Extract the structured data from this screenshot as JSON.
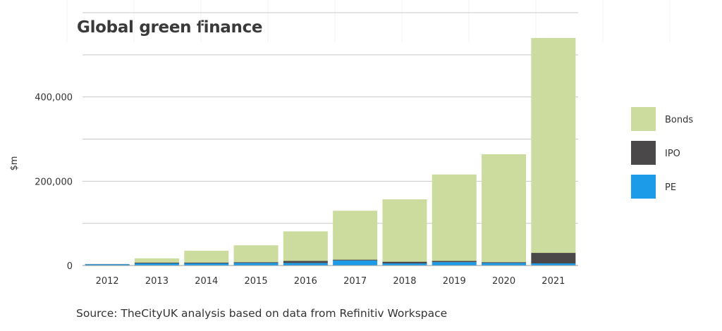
{
  "chart_data": {
    "type": "bar",
    "stacked": true,
    "title": "Global green finance",
    "ylabel": "$m",
    "xlabel": "",
    "source": "Source: TheCityUK analysis based on data from Refinitiv Workspace",
    "categories": [
      "2012",
      "2013",
      "2014",
      "2015",
      "2016",
      "2017",
      "2018",
      "2019",
      "2020",
      "2021"
    ],
    "series": [
      {
        "name": "PE",
        "color": "#1b9be8",
        "values": [
          3000,
          5000,
          5000,
          6000,
          6000,
          12000,
          5000,
          8000,
          6000,
          5000
        ]
      },
      {
        "name": "IPO",
        "color": "#4a4848",
        "values": [
          500,
          2000,
          2000,
          2000,
          5000,
          2000,
          4000,
          3000,
          2000,
          25000
        ]
      },
      {
        "name": "Bonds",
        "color": "#cbdc9e",
        "values": [
          0,
          10000,
          28000,
          40000,
          70000,
          116000,
          148000,
          205000,
          256000,
          510000
        ]
      }
    ],
    "ylim": [
      0,
      600000
    ],
    "yticks": [
      0,
      200000,
      400000
    ],
    "ytick_labels": [
      "0",
      "200,000",
      "400,000"
    ],
    "gridlines": [
      100000,
      200000,
      300000,
      400000,
      500000,
      600000
    ],
    "grid": true,
    "legend": {
      "position": "right",
      "order": [
        "Bonds",
        "IPO",
        "PE"
      ]
    }
  }
}
